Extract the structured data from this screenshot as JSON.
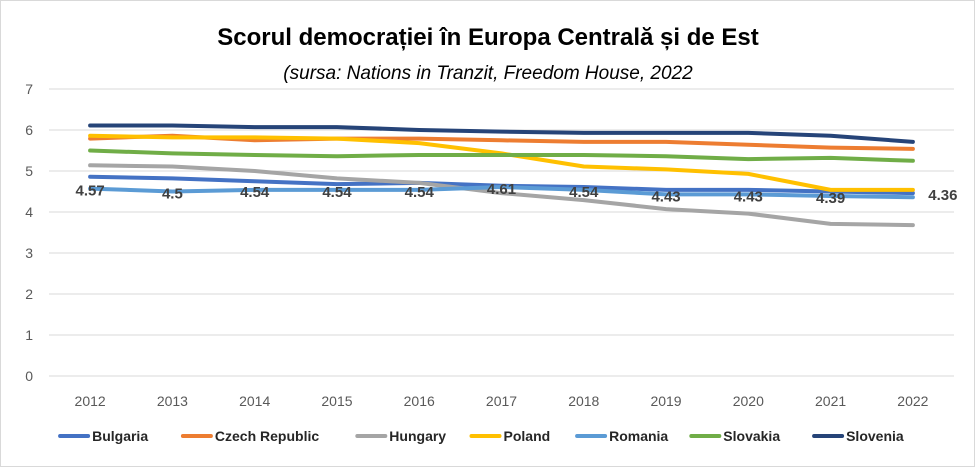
{
  "chart_data": {
    "type": "line",
    "title": "Scorul democrației în Europa Centrală și de Est",
    "subtitle": "(sursa: Nations in Tranzit, Freedom House, 2022",
    "x": [
      "2012",
      "2013",
      "2014",
      "2015",
      "2016",
      "2017",
      "2018",
      "2019",
      "2020",
      "2021",
      "2022"
    ],
    "ylim": [
      0,
      7
    ],
    "yticks": [
      0,
      1,
      2,
      3,
      4,
      5,
      6,
      7
    ],
    "grid": true,
    "legend": "bottom",
    "series": [
      {
        "name": "Bulgaria",
        "color": "#4472C4",
        "values": [
          4.86,
          4.82,
          4.75,
          4.68,
          4.71,
          4.64,
          4.61,
          4.54,
          4.54,
          4.5,
          4.46
        ]
      },
      {
        "name": "Czech Republic",
        "color": "#ED7D31",
        "values": [
          5.79,
          5.86,
          5.75,
          5.79,
          5.79,
          5.75,
          5.71,
          5.71,
          5.64,
          5.57,
          5.54
        ]
      },
      {
        "name": "Hungary",
        "color": "#A5A5A5",
        "values": [
          5.14,
          5.11,
          5.0,
          4.82,
          4.71,
          4.46,
          4.29,
          4.07,
          3.96,
          3.71,
          3.68
        ]
      },
      {
        "name": "Poland",
        "color": "#FFC000",
        "values": [
          5.86,
          5.82,
          5.82,
          5.79,
          5.68,
          5.43,
          5.11,
          5.04,
          4.93,
          4.54,
          4.54
        ]
      },
      {
        "name": "Romania",
        "color": "#5B9BD5",
        "values": [
          4.57,
          4.5,
          4.54,
          4.54,
          4.54,
          4.61,
          4.54,
          4.43,
          4.43,
          4.39,
          4.36
        ],
        "data_labels": [
          "4.57",
          "4.5",
          "4.54",
          "4.54",
          "4.54",
          "4.61",
          "4.54",
          "4.43",
          "4.43",
          "4.39",
          "4.36"
        ]
      },
      {
        "name": "Slovakia",
        "color": "#70AD47",
        "values": [
          5.5,
          5.43,
          5.39,
          5.36,
          5.39,
          5.39,
          5.39,
          5.36,
          5.29,
          5.32,
          5.25
        ]
      },
      {
        "name": "Slovenia",
        "color": "#264478",
        "values": [
          6.11,
          6.11,
          6.07,
          6.07,
          6.0,
          5.96,
          5.93,
          5.93,
          5.93,
          5.86,
          5.71
        ]
      }
    ]
  }
}
